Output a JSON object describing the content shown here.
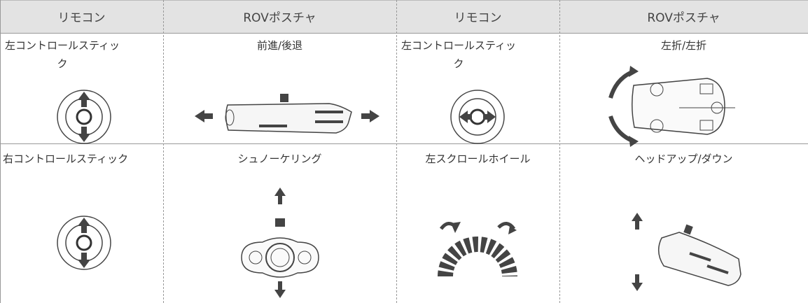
{
  "table": {
    "header": [
      "リモコン",
      "ROVポスチャ",
      "リモコン",
      "ROVポスチャ"
    ],
    "rows": [
      [
        "左コントロールスティック",
        "前進/後退",
        "左コントロールスティック",
        "左折/左折"
      ],
      [
        "右コントロールスティック",
        "シュノーケリング",
        "左スクロールホイール",
        "ヘッドアップ/ダウン"
      ]
    ]
  }
}
